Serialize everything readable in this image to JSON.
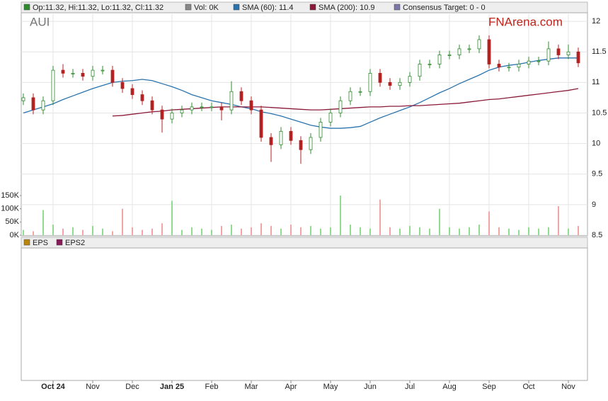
{
  "chart_data": {
    "type": "candlestick",
    "ticker": "AUI",
    "logo": "FNArena.com",
    "legend": [
      {
        "label": "Op:11.32, Hi:11.32, Lo:11.32, Cl:11.32",
        "color": "#2e8b2e"
      },
      {
        "label": "Vol: 0K",
        "color": "#888888"
      },
      {
        "label": "SMA (60): 11.4",
        "color": "#2a73ad"
      },
      {
        "label": "SMA (200): 10.9",
        "color": "#8b1a3a"
      },
      {
        "label": "Consensus Target: 0 - 0",
        "color": "#7a76a8"
      }
    ],
    "categories": [
      null,
      null,
      null,
      "Oct 24",
      null,
      null,
      null,
      "Nov",
      null,
      null,
      null,
      "Dec",
      null,
      null,
      null,
      "Jan 25",
      null,
      null,
      null,
      "Feb",
      null,
      null,
      null,
      "Mar",
      null,
      null,
      null,
      "Apr",
      null,
      null,
      null,
      "May",
      null,
      null,
      null,
      "Jun",
      null,
      null,
      null,
      "Jul",
      null,
      null,
      null,
      "Aug",
      null,
      null,
      null,
      "Sep",
      null,
      null,
      null,
      "Oct",
      null,
      null,
      null,
      "Nov",
      null
    ],
    "open": [
      10.7,
      10.75,
      10.55,
      10.7,
      11.2,
      11.15,
      11.15,
      11.1,
      11.2,
      11.2,
      11.0,
      10.9,
      10.8,
      10.7,
      10.55,
      10.4,
      10.5,
      10.55,
      10.6,
      10.6,
      10.6,
      10.55,
      10.85,
      10.7,
      10.55,
      10.1,
      9.98,
      10.2,
      10.05,
      9.9,
      10.1,
      10.35,
      10.5,
      10.7,
      10.85,
      10.85,
      11.15,
      11.0,
      10.95,
      11.0,
      11.1,
      11.3,
      11.3,
      11.45,
      11.45,
      11.55,
      11.55,
      11.7,
      11.3,
      11.25,
      11.25,
      11.3,
      11.35,
      11.35,
      11.55,
      11.45,
      11.5
    ],
    "high": [
      10.82,
      10.82,
      10.77,
      11.27,
      11.3,
      11.22,
      11.22,
      11.27,
      11.27,
      11.27,
      11.07,
      10.97,
      10.87,
      10.77,
      10.62,
      10.57,
      10.62,
      10.67,
      10.67,
      10.67,
      10.67,
      11.02,
      10.92,
      10.77,
      10.62,
      10.17,
      10.27,
      10.27,
      10.12,
      10.17,
      10.42,
      10.57,
      10.77,
      10.92,
      10.92,
      11.22,
      11.22,
      11.07,
      11.07,
      11.17,
      11.37,
      11.37,
      11.52,
      11.52,
      11.62,
      11.62,
      11.77,
      11.77,
      11.37,
      11.32,
      11.37,
      11.42,
      11.42,
      11.67,
      11.62,
      11.62,
      11.57
    ],
    "low": [
      10.63,
      10.48,
      10.48,
      10.63,
      11.08,
      11.08,
      11.03,
      11.03,
      11.13,
      10.93,
      10.83,
      10.73,
      10.63,
      10.48,
      10.18,
      10.33,
      10.43,
      10.48,
      10.53,
      10.53,
      10.38,
      10.48,
      10.63,
      10.48,
      10.03,
      9.7,
      9.91,
      9.98,
      9.67,
      9.83,
      10.03,
      10.28,
      10.43,
      10.63,
      10.78,
      10.78,
      10.93,
      10.88,
      10.88,
      10.93,
      11.03,
      11.23,
      11.23,
      11.38,
      11.38,
      11.48,
      11.48,
      11.23,
      11.18,
      11.18,
      11.18,
      11.23,
      11.28,
      11.28,
      11.38,
      11.38,
      11.25
    ],
    "close": [
      10.75,
      10.55,
      10.7,
      11.2,
      11.15,
      11.15,
      11.1,
      11.2,
      11.2,
      11.0,
      10.9,
      10.8,
      10.7,
      10.55,
      10.4,
      10.5,
      10.55,
      10.6,
      10.6,
      10.6,
      10.55,
      10.85,
      10.7,
      10.55,
      10.1,
      9.98,
      10.2,
      10.05,
      9.9,
      10.1,
      10.35,
      10.5,
      10.7,
      10.85,
      10.85,
      11.15,
      11.0,
      10.95,
      11.0,
      11.1,
      11.3,
      11.3,
      11.45,
      11.45,
      11.55,
      11.55,
      11.7,
      11.3,
      11.25,
      11.25,
      11.3,
      11.35,
      11.35,
      11.55,
      11.45,
      11.5,
      11.32
    ],
    "up_color": "#2e8b2e",
    "down_color": "#b22222",
    "series": [
      {
        "color": "#2a73ad",
        "values": [
          10.5,
          10.55,
          10.6,
          10.65,
          10.72,
          10.78,
          10.84,
          10.9,
          10.95,
          11.0,
          11.02,
          11.03,
          11.05,
          11.03,
          10.98,
          10.93,
          10.87,
          10.8,
          10.75,
          10.7,
          10.67,
          10.64,
          10.6,
          10.57,
          10.52,
          10.49,
          10.45,
          10.4,
          10.35,
          10.3,
          10.27,
          10.25,
          10.25,
          10.26,
          10.28,
          10.35,
          10.42,
          10.48,
          10.54,
          10.6,
          10.67,
          10.75,
          10.83,
          10.9,
          10.98,
          11.05,
          11.12,
          11.2,
          11.25,
          11.28,
          11.3,
          11.33,
          11.36,
          11.38,
          11.4,
          11.4,
          11.4
        ]
      },
      {
        "color": "#8b1a3a",
        "values": [
          null,
          null,
          null,
          null,
          null,
          null,
          null,
          null,
          null,
          10.45,
          10.46,
          10.48,
          10.5,
          10.52,
          10.53,
          10.55,
          10.56,
          10.57,
          10.58,
          10.59,
          10.6,
          10.6,
          10.6,
          10.6,
          10.6,
          10.59,
          10.58,
          10.57,
          10.56,
          10.55,
          10.55,
          10.56,
          10.57,
          10.58,
          10.59,
          10.6,
          10.6,
          10.61,
          10.61,
          10.62,
          10.62,
          10.63,
          10.64,
          10.65,
          10.66,
          10.68,
          10.7,
          10.72,
          10.73,
          10.75,
          10.77,
          10.79,
          10.81,
          10.83,
          10.85,
          10.87,
          10.9
        ]
      }
    ],
    "ylim": [
      8.5,
      12.14
    ],
    "yticks": [
      8.5,
      9.0,
      9.5,
      10.0,
      10.5,
      11.0,
      11.5,
      12.0
    ],
    "grid": true,
    "volume": {
      "up_color": "#90dd90",
      "down_color": "#f2a5a5",
      "values": [
        20000,
        15000,
        95000,
        40000,
        25000,
        30000,
        20000,
        35000,
        25000,
        15000,
        100000,
        30000,
        20000,
        25000,
        45000,
        130000,
        20000,
        30000,
        25000,
        20000,
        35000,
        40000,
        25000,
        30000,
        45000,
        35000,
        25000,
        40000,
        30000,
        35000,
        25000,
        30000,
        150000,
        40000,
        30000,
        25000,
        135000,
        30000,
        25000,
        35000,
        30000,
        25000,
        100000,
        30000,
        25000,
        30000,
        40000,
        90000,
        30000,
        25000,
        20000,
        30000,
        25000,
        30000,
        110000,
        25000,
        35000
      ],
      "ylim": [
        0,
        150000
      ],
      "yticks": [
        {
          "value": 0,
          "label": "0K"
        },
        {
          "value": 50000,
          "label": "50K"
        },
        {
          "value": 100000,
          "label": "100K"
        },
        {
          "value": 150000,
          "label": "150K"
        }
      ]
    },
    "eps_legend": [
      {
        "label": "EPS",
        "color": "#b8860b"
      },
      {
        "label": "EPS2",
        "color": "#8b1a5a"
      }
    ]
  }
}
